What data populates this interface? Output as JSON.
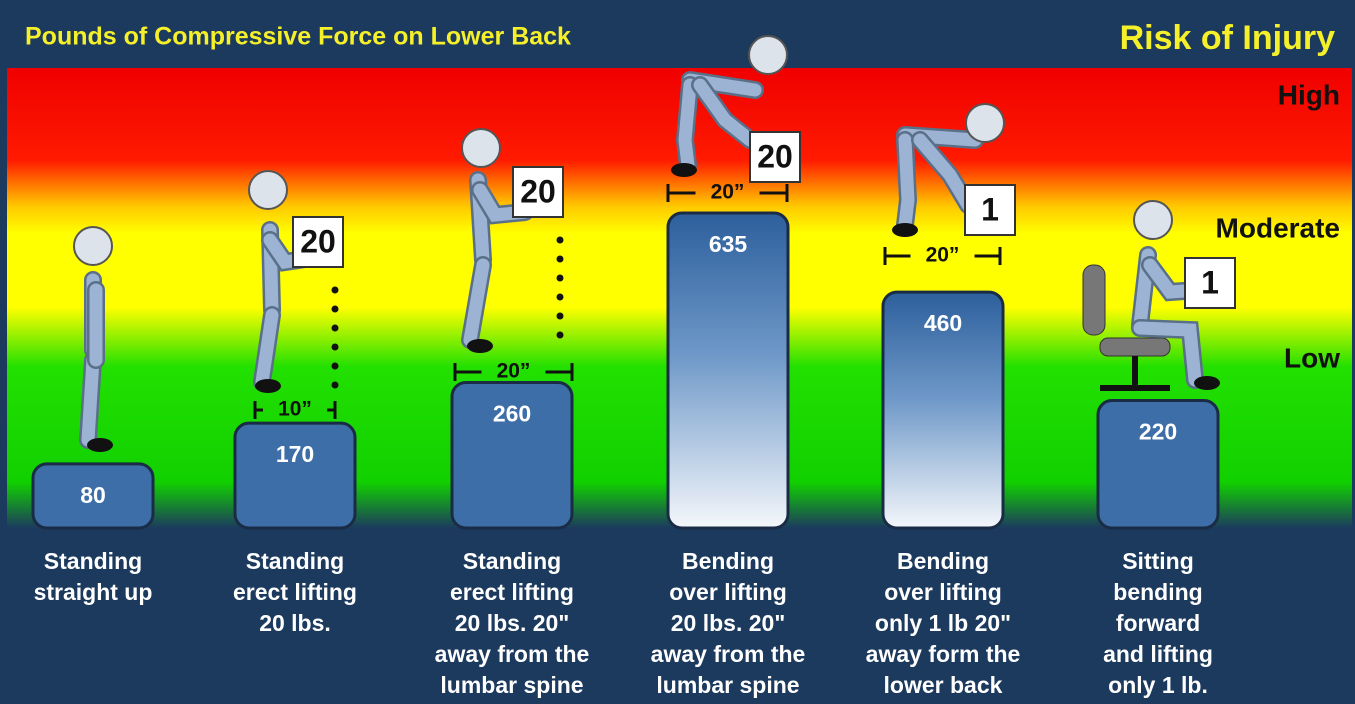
{
  "chart_data": {
    "type": "bar",
    "title": "Pounds of Compressive Force on Lower Back",
    "risk_title": "Risk of Injury",
    "risk_levels": [
      "High",
      "Moderate",
      "Low"
    ],
    "categories": [
      "Standing\nstraight up",
      "Standing\nerect lifting\n20 lbs.",
      "Standing\nerect lifting\n20 lbs. 20\"\naway from the\nlumbar spine",
      "Bending\nover lifting\n20 lbs. 20\"\naway from the\nlumbar spine",
      "Bending\nover lifting\nonly 1 lb 20\"\naway form the\nlower back",
      "Sitting\nbending\nforward\nand lifting\nonly 1 lb."
    ],
    "values": [
      80,
      170,
      260,
      635,
      460,
      220
    ],
    "load_labels": [
      null,
      "20",
      "20",
      "20",
      "1",
      "1"
    ],
    "distance_labels": [
      null,
      "10”",
      "20”",
      "20”",
      "20”",
      null
    ]
  }
}
